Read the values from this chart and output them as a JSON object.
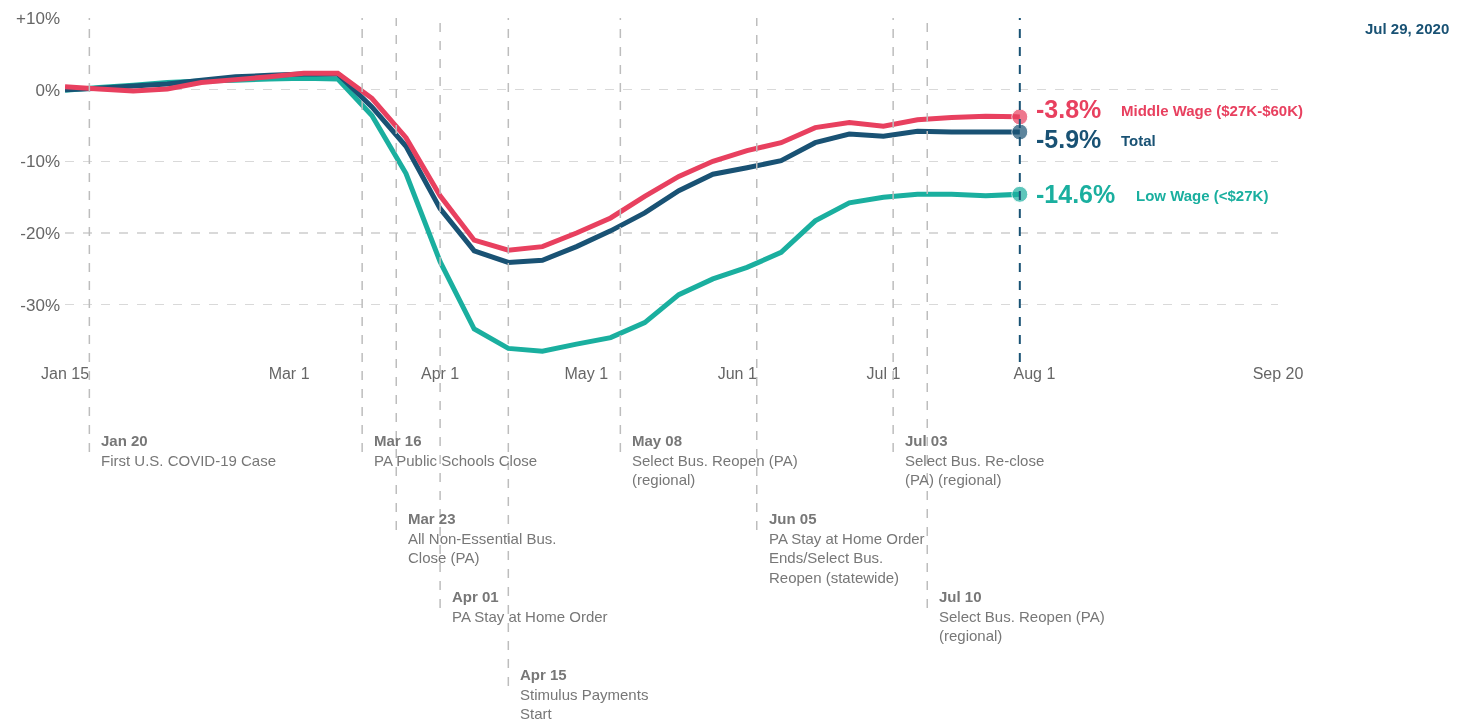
{
  "chart_data": {
    "type": "line",
    "x": [
      "2020-01-15",
      "2020-01-22",
      "2020-01-29",
      "2020-02-05",
      "2020-02-12",
      "2020-02-19",
      "2020-02-26",
      "2020-03-04",
      "2020-03-11",
      "2020-03-18",
      "2020-03-25",
      "2020-04-01",
      "2020-04-08",
      "2020-04-15",
      "2020-04-22",
      "2020-04-29",
      "2020-05-06",
      "2020-05-13",
      "2020-05-20",
      "2020-05-27",
      "2020-06-03",
      "2020-06-10",
      "2020-06-17",
      "2020-06-24",
      "2020-07-01",
      "2020-07-08",
      "2020-07-15",
      "2020-07-22",
      "2020-07-29"
    ],
    "series": [
      {
        "name": "Middle Wage ($27K-$60K)",
        "color": "#e8405f",
        "values": [
          0.4,
          0.1,
          -0.2,
          0.1,
          1.0,
          1.4,
          1.8,
          2.3,
          2.3,
          -1.2,
          -6.7,
          -14.8,
          -21,
          -22.4,
          -21.9,
          -20.0,
          -17.9,
          -14.9,
          -12.1,
          -10.0,
          -8.5,
          -7.4,
          -5.3,
          -4.6,
          -5.1,
          -4.2,
          -3.9,
          -3.7,
          -3.8
        ],
        "value_labels": [
          null,
          null,
          null,
          null,
          null,
          null,
          null,
          null,
          null,
          null,
          null,
          null,
          null,
          null,
          null,
          null,
          null,
          null,
          null,
          null,
          null,
          null,
          null,
          null,
          null,
          null,
          null,
          null,
          "-3.8%"
        ]
      },
      {
        "name": "Total",
        "color": "#195274",
        "values": [
          0.0,
          0.2,
          0.5,
          0.8,
          1.3,
          1.8,
          2.0,
          2.2,
          2.2,
          -2.4,
          -7.9,
          -16.6,
          -22.5,
          -24.1,
          -23.8,
          -21.9,
          -19.7,
          -17.2,
          -14.1,
          -11.8,
          -10.9,
          -9.9,
          -7.4,
          -6.2,
          -6.5,
          -5.8,
          -5.9,
          -5.9,
          -5.9
        ],
        "value_labels": [
          null,
          null,
          null,
          null,
          null,
          null,
          null,
          null,
          null,
          null,
          null,
          null,
          null,
          null,
          null,
          null,
          null,
          null,
          null,
          null,
          null,
          null,
          null,
          null,
          null,
          null,
          null,
          null,
          "-5.9%"
        ]
      },
      {
        "name": "Low Wage (<$27K)",
        "color": "#1aaf9f",
        "values": [
          -0.1,
          0.3,
          0.6,
          1.0,
          1.2,
          1.3,
          1.5,
          1.6,
          1.5,
          -3.6,
          -11.7,
          -24,
          -33.4,
          -36.1,
          -36.5,
          -35.5,
          -34.6,
          -32.5,
          -28.6,
          -26.4,
          -24.8,
          -22.7,
          -18.3,
          -15.8,
          -15.0,
          -14.6,
          -14.6,
          -14.8,
          -14.6
        ],
        "value_labels": [
          null,
          null,
          null,
          null,
          null,
          null,
          null,
          null,
          null,
          null,
          null,
          null,
          null,
          null,
          null,
          null,
          null,
          null,
          null,
          null,
          null,
          null,
          null,
          null,
          null,
          null,
          null,
          null,
          "-14.6%"
        ]
      }
    ],
    "xlim": [
      "2020-01-15",
      "2020-09-20"
    ],
    "xticks": [
      {
        "value": "2020-01-15",
        "label": "Jan 15"
      },
      {
        "value": "2020-03-01",
        "label": "Mar 1"
      },
      {
        "value": "2020-04-01",
        "label": "Apr 1"
      },
      {
        "value": "2020-05-01",
        "label": "May 1"
      },
      {
        "value": "2020-06-01",
        "label": "Jun 1"
      },
      {
        "value": "2020-07-01",
        "label": "Jul 1"
      },
      {
        "value": "2020-08-01",
        "label": "Aug 1"
      },
      {
        "value": "2020-09-20",
        "label": "Sep 20"
      }
    ],
    "ylim": [
      -38,
      10
    ],
    "yticks": [
      {
        "value": 10,
        "label": "+10%"
      },
      {
        "value": 0,
        "label": "0%"
      },
      {
        "value": -10,
        "label": "-10%"
      },
      {
        "value": -20,
        "label": "-20%"
      },
      {
        "value": -30,
        "label": "-30%"
      }
    ],
    "grid": "y",
    "legend": false,
    "line_style": "solid",
    "ref_lines": [
      {
        "axis": "x",
        "value": "2020-01-20",
        "label": "Jan 20\nFirst U.S. COVID-19 Case"
      },
      {
        "axis": "x",
        "value": "2020-03-16",
        "label": "Mar 16\nPA Public Schools Close"
      },
      {
        "axis": "x",
        "value": "2020-03-23",
        "label": "Mar 23\nAll Non-Essential Bus.\nClose (PA)"
      },
      {
        "axis": "x",
        "value": "2020-04-01",
        "label": "Apr 01\nPA Stay at Home Order"
      },
      {
        "axis": "x",
        "value": "2020-04-15",
        "label": "Apr 15\nStimulus Payments\nStart"
      },
      {
        "axis": "x",
        "value": "2020-05-08",
        "label": "May 08\nSelect Bus. Reopen (PA)\n(regional)"
      },
      {
        "axis": "x",
        "value": "2020-06-05",
        "label": "Jun 05\nPA Stay at Home Order\nEnds/Select Bus.\nReopen (statewide)"
      },
      {
        "axis": "x",
        "value": "2020-07-03",
        "label": "Jul 03\nSelect Bus. Re-close\n(PA) (regional)"
      },
      {
        "axis": "x",
        "value": "2020-07-10",
        "label": "Jul 10\nSelect Bus. Reopen (PA)\n(regional)"
      },
      {
        "axis": "x",
        "value": "2020-07-29",
        "label": "Jul 29, 2020",
        "color": "#195274",
        "line_style": "dashed"
      }
    ]
  }
}
